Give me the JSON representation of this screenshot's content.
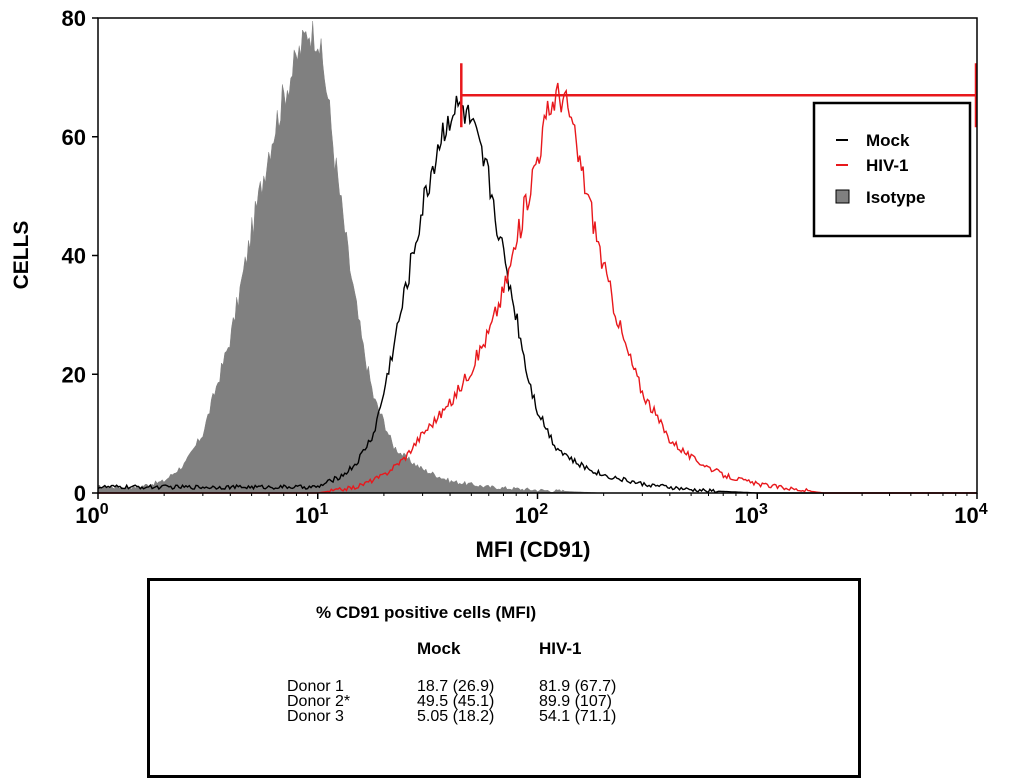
{
  "chart_data": {
    "type": "histogram",
    "x_scale": "log",
    "xlim": [
      1,
      10000
    ],
    "ylim": [
      0,
      80
    ],
    "xlabel": "MFI (CD91)",
    "ylabel": "CELLS",
    "x_ticks": [
      {
        "value": 1,
        "base": "10",
        "exp": "0"
      },
      {
        "value": 10,
        "base": "10",
        "exp": "1"
      },
      {
        "value": 100,
        "base": "10",
        "exp": "2"
      },
      {
        "value": 1000,
        "base": "10",
        "exp": "3"
      },
      {
        "value": 10000,
        "base": "10",
        "exp": "4"
      }
    ],
    "y_ticks": [
      0,
      20,
      40,
      60,
      80
    ],
    "legend": {
      "position": "top-right",
      "entries": [
        {
          "label": "Mock",
          "color": "#000000",
          "style": "line"
        },
        {
          "label": "HIV-1",
          "color": "#e8181c",
          "style": "line"
        },
        {
          "label": "Isotype",
          "color": "#808080",
          "style": "filled"
        }
      ]
    },
    "series": [
      {
        "name": "Isotype",
        "style": "filled",
        "color": "#808080",
        "x": [
          1,
          1.5,
          2,
          2.5,
          3,
          4,
          5,
          6,
          7,
          8,
          9,
          10,
          11,
          12,
          14,
          16,
          18,
          20,
          22,
          25,
          30,
          40,
          60,
          100,
          200,
          10000
        ],
        "y": [
          1,
          1,
          2,
          5,
          10,
          26,
          44,
          58,
          67,
          73,
          78,
          77,
          68,
          56,
          38,
          25,
          16,
          12,
          8,
          6,
          4,
          2,
          1,
          0.5,
          0,
          0
        ]
      },
      {
        "name": "Mock",
        "style": "line",
        "color": "#000000",
        "x": [
          1,
          5,
          10,
          13,
          15,
          18,
          20,
          25,
          30,
          35,
          40,
          45,
          50,
          55,
          60,
          70,
          80,
          90,
          100,
          120,
          150,
          200,
          300,
          500,
          1000,
          10000
        ],
        "y": [
          1,
          1,
          1,
          3,
          5,
          10,
          17,
          34,
          48,
          58,
          64,
          65,
          62,
          57,
          53,
          40,
          30,
          20,
          14,
          8,
          5,
          3,
          1.5,
          0.5,
          0,
          0
        ]
      },
      {
        "name": "HIV-1",
        "style": "line",
        "color": "#e8181c",
        "x": [
          1,
          10,
          15,
          20,
          25,
          30,
          40,
          50,
          60,
          70,
          80,
          90,
          100,
          110,
          120,
          130,
          140,
          150,
          170,
          200,
          250,
          300,
          400,
          500,
          700,
          1000,
          2000,
          10000
        ],
        "y": [
          0,
          0,
          1,
          3,
          6,
          10,
          15,
          21,
          27,
          34,
          42,
          50,
          57,
          63,
          67,
          67,
          64,
          58,
          50,
          38,
          25,
          17,
          9,
          6,
          3,
          1.5,
          0,
          0
        ]
      }
    ],
    "gate": {
      "x_start": 45,
      "x_end": 10000,
      "y": 67,
      "color": "#e8181c"
    }
  },
  "stats_table": {
    "title": "% CD91 positive cells (MFI)",
    "columns": [
      "Mock",
      "HIV-1"
    ],
    "rows": [
      {
        "donor": "Donor 1",
        "mock": "18.7 (26.9)",
        "hiv": "81.9 (67.7)"
      },
      {
        "donor": "Donor 2*",
        "mock": "49.5 (45.1)",
        "hiv": "89.9 (107)"
      },
      {
        "donor": "Donor 3",
        "mock": "5.05 (18.2)",
        "hiv": "54.1 (71.1)"
      }
    ]
  }
}
